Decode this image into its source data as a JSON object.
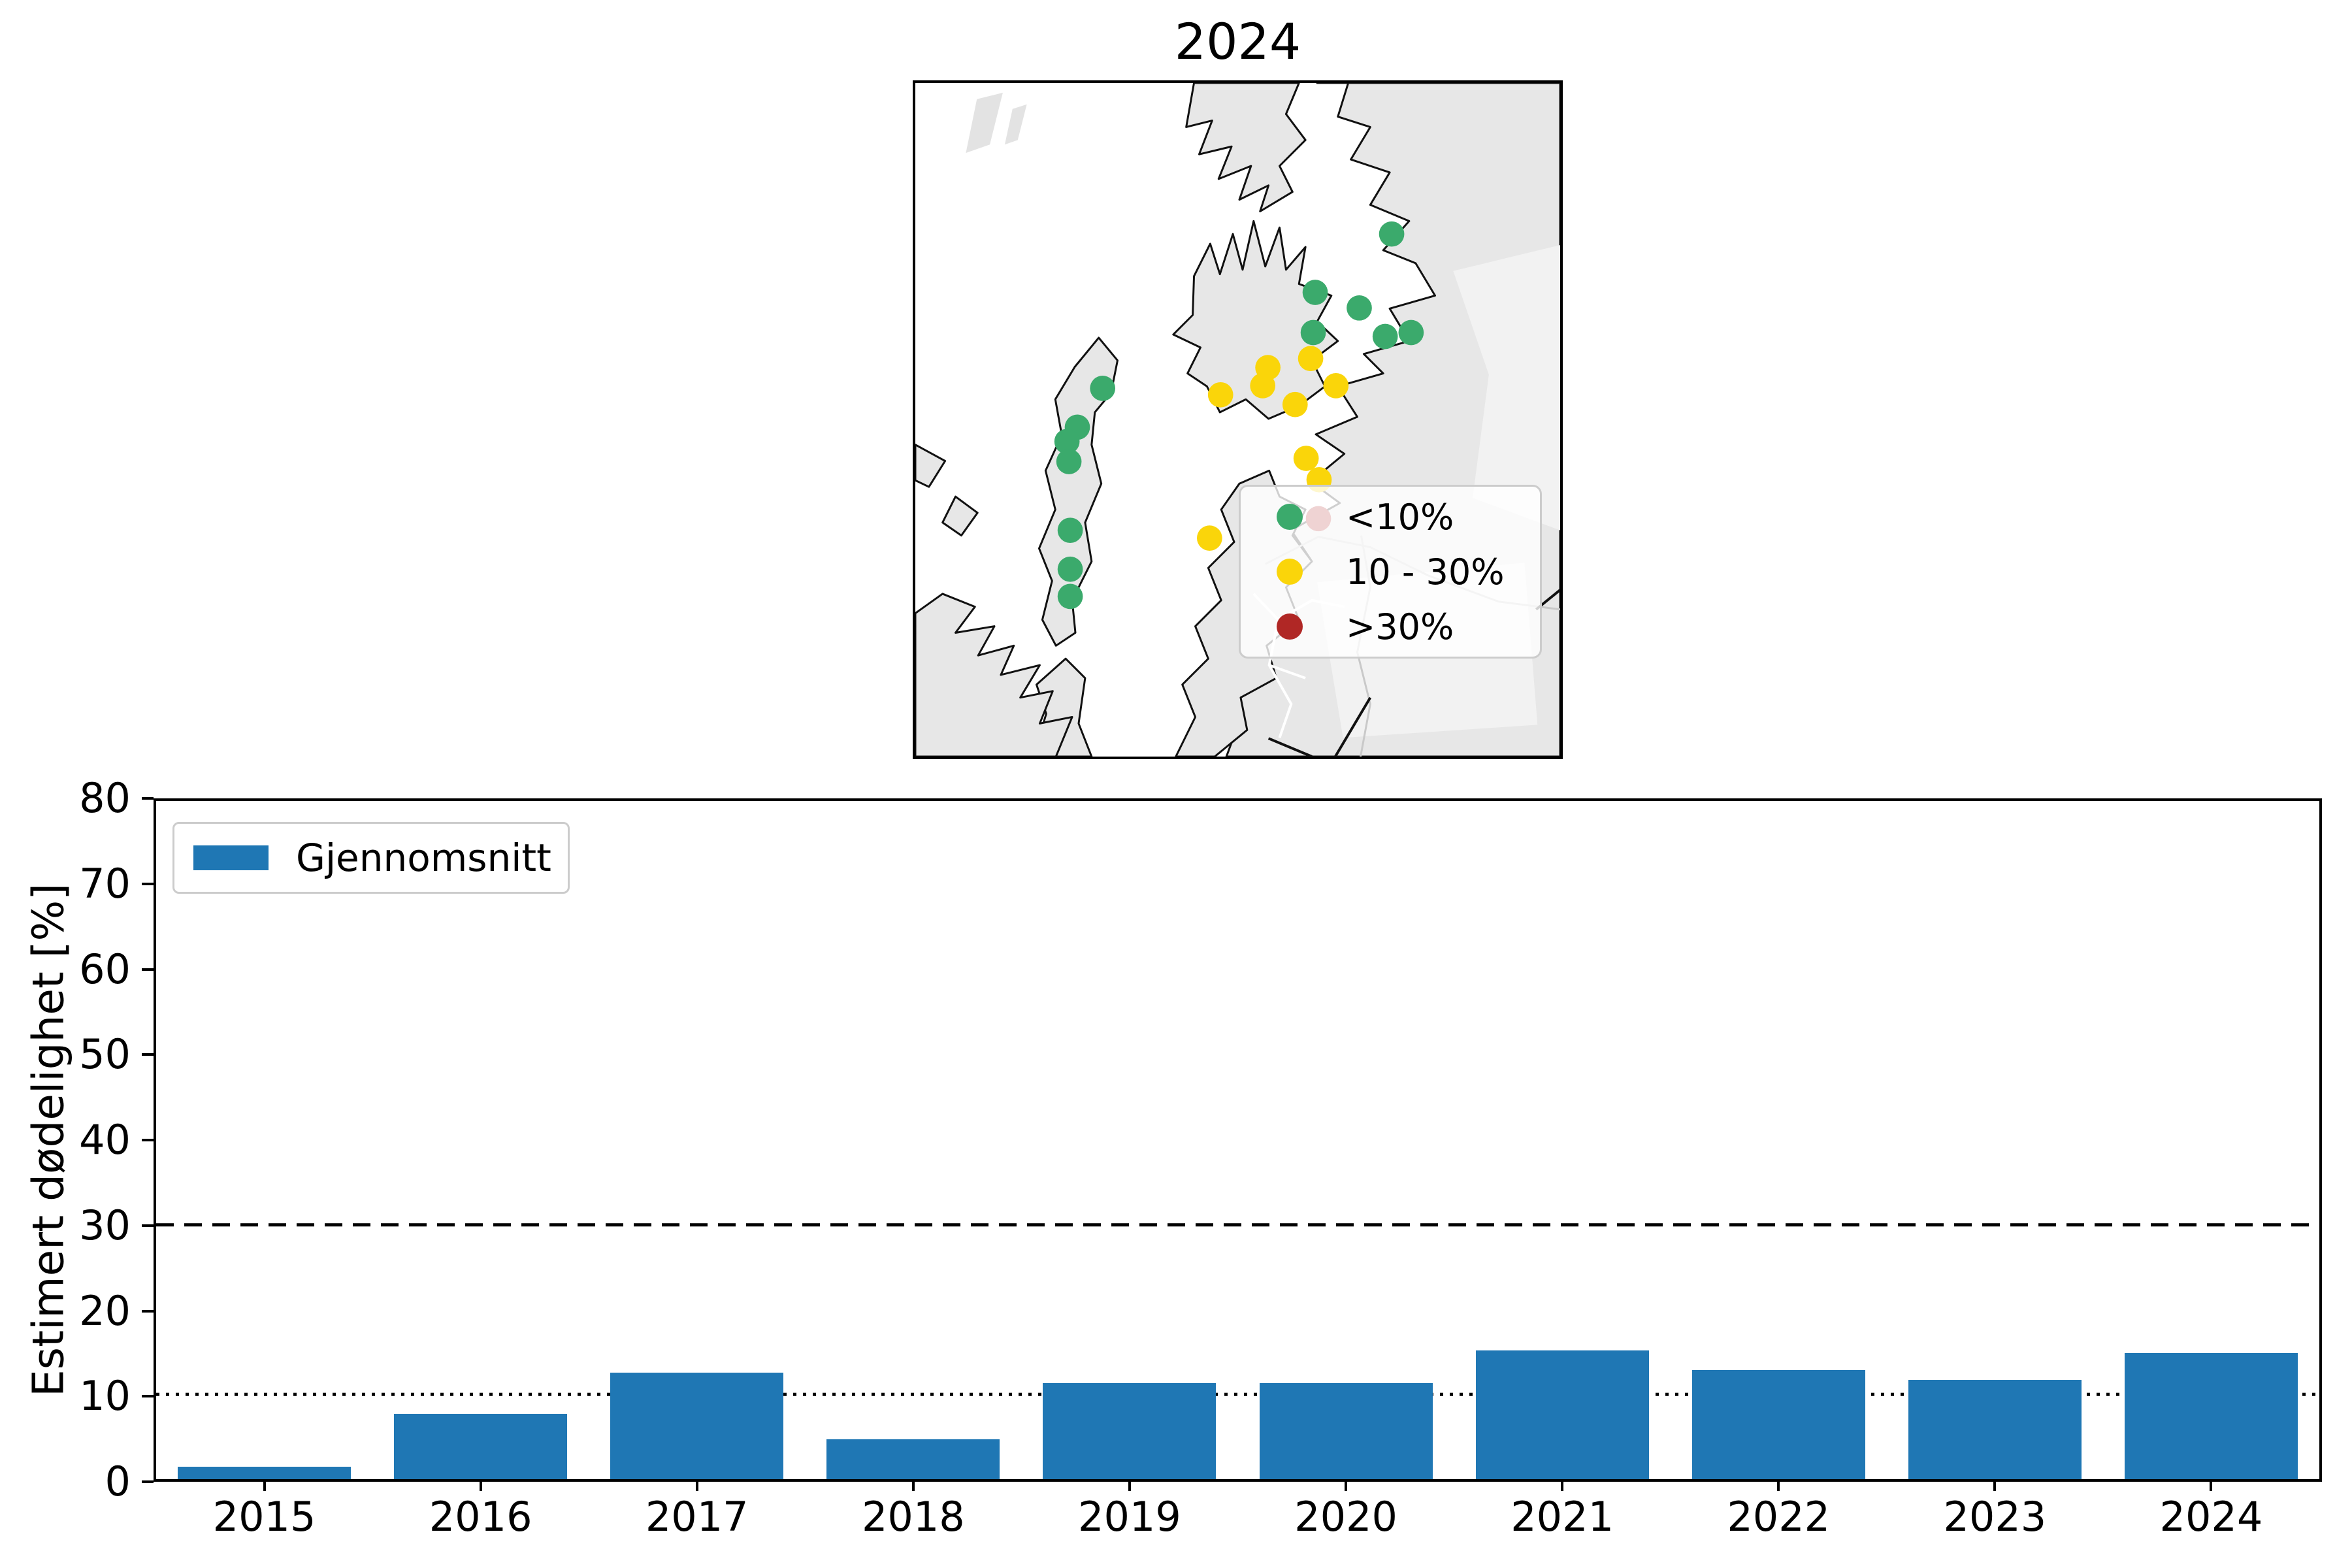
{
  "map": {
    "title": "2024"
  },
  "chart": {
    "yticks": [
      0,
      10,
      20,
      30,
      40,
      50,
      60,
      70,
      80
    ]
  },
  "chart_data": [
    {
      "type": "scatter",
      "title": "2024",
      "description": "Map of farm sites, northern Norway coast, colored by estimated mortality class",
      "units": "map-pixels (995x1039 panel)",
      "legend_position": "lower right",
      "legend_items": [
        {
          "key": "lt10",
          "label": "<10%",
          "color": "#3BAA6C"
        },
        {
          "key": "10to30",
          "label": "10 - 30%",
          "color": "#FAD50A"
        },
        {
          "key": "gt30",
          "label": ">30%",
          "color": "#B02725"
        }
      ],
      "points": [
        {
          "x": 735,
          "y": 233,
          "k": "lt10"
        },
        {
          "x": 617,
          "y": 323,
          "k": "lt10"
        },
        {
          "x": 685,
          "y": 347,
          "k": "lt10"
        },
        {
          "x": 614,
          "y": 385,
          "k": "lt10"
        },
        {
          "x": 725,
          "y": 391,
          "k": "lt10"
        },
        {
          "x": 765,
          "y": 385,
          "k": "lt10"
        },
        {
          "x": 289,
          "y": 471,
          "k": "lt10"
        },
        {
          "x": 250,
          "y": 531,
          "k": "lt10"
        },
        {
          "x": 234,
          "y": 553,
          "k": "lt10"
        },
        {
          "x": 237,
          "y": 584,
          "k": "lt10"
        },
        {
          "x": 239,
          "y": 690,
          "k": "lt10"
        },
        {
          "x": 239,
          "y": 750,
          "k": "lt10"
        },
        {
          "x": 239,
          "y": 792,
          "k": "lt10"
        },
        {
          "x": 610,
          "y": 425,
          "k": "10to30"
        },
        {
          "x": 544,
          "y": 439,
          "k": "10to30"
        },
        {
          "x": 536,
          "y": 467,
          "k": "10to30"
        },
        {
          "x": 471,
          "y": 481,
          "k": "10to30"
        },
        {
          "x": 649,
          "y": 467,
          "k": "10to30"
        },
        {
          "x": 586,
          "y": 496,
          "k": "10to30"
        },
        {
          "x": 603,
          "y": 579,
          "k": "10to30"
        },
        {
          "x": 623,
          "y": 612,
          "k": "10to30"
        },
        {
          "x": 454,
          "y": 702,
          "k": "10to30"
        },
        {
          "x": 622,
          "y": 672,
          "k": "gt30"
        }
      ]
    },
    {
      "type": "bar",
      "categories": [
        "2015",
        "2016",
        "2017",
        "2018",
        "2019",
        "2020",
        "2021",
        "2022",
        "2023",
        "2024"
      ],
      "values": [
        1.5,
        7.7,
        12.6,
        4.7,
        11.3,
        11.3,
        15.2,
        12.9,
        11.7,
        14.9
      ],
      "ylabel": "Estimert dødelighet [%]",
      "xlabel": "",
      "ylim": [
        0,
        80
      ],
      "bar_color": "#1F77B4",
      "legend": [
        "Gjennomsnitt"
      ],
      "legend_position": "upper left",
      "grid": false,
      "ref_lines": [
        {
          "value": 30,
          "style": "dashed",
          "color": "#000000"
        },
        {
          "value": 10,
          "style": "dotted",
          "color": "#000000"
        }
      ]
    }
  ]
}
